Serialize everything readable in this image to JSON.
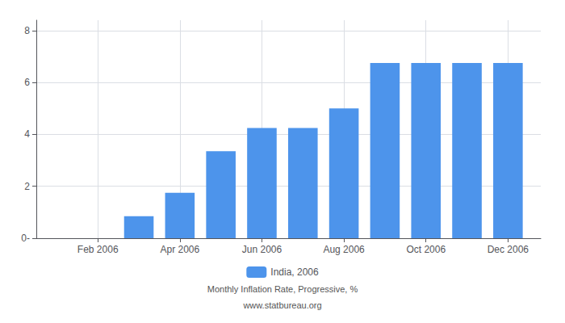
{
  "chart_data": {
    "type": "bar",
    "x": [
      1,
      2,
      3,
      4,
      5,
      6,
      7,
      8,
      9,
      10,
      11,
      12
    ],
    "series": [
      {
        "name": "India, 2006",
        "color": "#4d94eb",
        "values": [
          0.0,
          0.0,
          0.85,
          1.75,
          3.35,
          4.25,
          4.25,
          5.0,
          6.75,
          6.75,
          6.75,
          6.75
        ]
      }
    ],
    "xlim": [
      0.5,
      12.8
    ],
    "xticks": [
      {
        "value": 2,
        "label": "Feb 2006"
      },
      {
        "value": 4,
        "label": "Apr 2006"
      },
      {
        "value": 6,
        "label": "Jun 2006"
      },
      {
        "value": 8,
        "label": "Aug 2006"
      },
      {
        "value": 10,
        "label": "Oct 2006"
      },
      {
        "value": 12,
        "label": "Dec 2006"
      }
    ],
    "ylim": [
      0,
      8.4
    ],
    "yticks": [
      {
        "value": 0,
        "label": "0-"
      },
      2,
      4,
      6,
      8
    ],
    "annotations": [
      "Monthly Inflation Rate, Progressive, %",
      "www.statbureau.org"
    ],
    "legend": "bottom",
    "grid": true
  }
}
